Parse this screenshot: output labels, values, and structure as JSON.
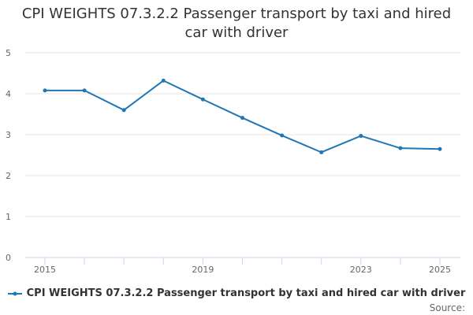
{
  "chart_data": {
    "type": "line",
    "title": "CPI WEIGHTS 07.3.2.2 Passenger transport by taxi and hired car with driver",
    "x": [
      2015,
      2016,
      2017,
      2018,
      2019,
      2020,
      2021,
      2022,
      2023,
      2024,
      2025
    ],
    "x_tick_labels": [
      "2015",
      "2019",
      "2023",
      "2025"
    ],
    "y_ticks": [
      "0",
      "1",
      "2",
      "3",
      "4",
      "5"
    ],
    "ylim": [
      0,
      5
    ],
    "grid": true,
    "legend_position": "bottom",
    "series": [
      {
        "name": "CPI WEIGHTS 07.3.2.2 Passenger transport by taxi and hired car with driver",
        "color": "#1f77b4",
        "values": [
          4.08,
          4.08,
          3.6,
          4.32,
          3.86,
          3.41,
          2.98,
          2.57,
          2.97,
          2.67,
          2.65
        ]
      }
    ]
  },
  "source_label": "Source:"
}
